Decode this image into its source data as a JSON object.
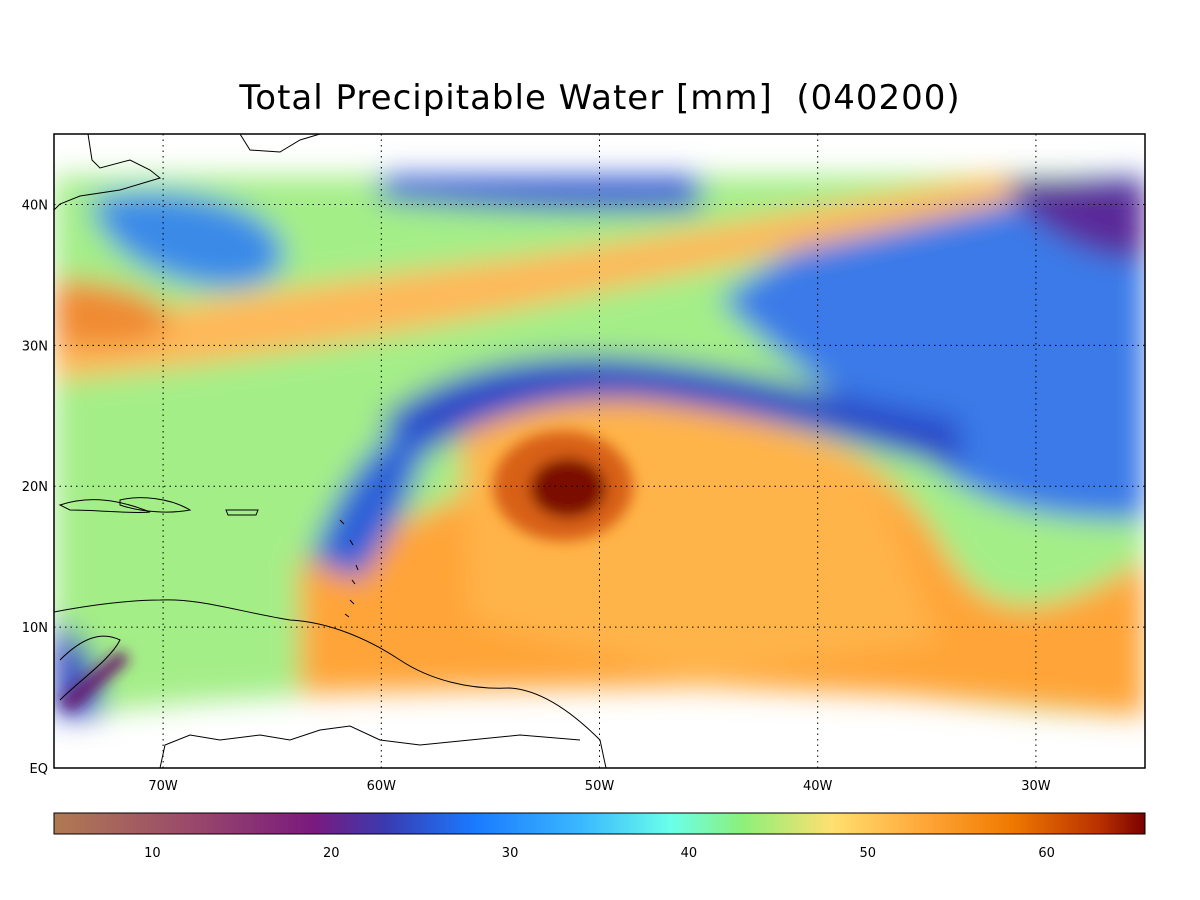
{
  "title": "Total Precipitable Water [mm]  (040200)",
  "map": {
    "lat_labels": [
      "EQ",
      "10N",
      "20N",
      "30N",
      "40N"
    ],
    "lon_labels": [
      "70W",
      "60W",
      "50W",
      "40W",
      "30W"
    ],
    "lat_values": [
      0,
      10,
      20,
      30,
      40
    ],
    "lon_values": [
      -70,
      -60,
      -50,
      -40,
      -30
    ],
    "extent": {
      "lon_min": -75,
      "lon_max": -25,
      "lat_min": 0,
      "lat_max": 45
    },
    "storm_center": {
      "lon": -51,
      "lat": 19.7,
      "label": ""
    }
  },
  "colorbar": {
    "tick_labels": [
      "10",
      "20",
      "30",
      "40",
      "50",
      "60"
    ],
    "ticks": [
      10,
      20,
      30,
      40,
      50,
      60
    ],
    "min": 4.5,
    "max": 65.5,
    "stops": [
      {
        "v": 4.5,
        "color": "#b07a52"
      },
      {
        "v": 12,
        "color": "#9a4a6a"
      },
      {
        "v": 19,
        "color": "#7a1a7e"
      },
      {
        "v": 23,
        "color": "#3a3ab0"
      },
      {
        "v": 28,
        "color": "#1a7aff"
      },
      {
        "v": 34,
        "color": "#3ab8ff"
      },
      {
        "v": 39,
        "color": "#6affea"
      },
      {
        "v": 43,
        "color": "#8cf07a"
      },
      {
        "v": 48,
        "color": "#ffe070"
      },
      {
        "v": 53,
        "color": "#ffa83a"
      },
      {
        "v": 58,
        "color": "#f07a00"
      },
      {
        "v": 63,
        "color": "#b83000"
      },
      {
        "v": 65.5,
        "color": "#7a0000"
      }
    ]
  }
}
